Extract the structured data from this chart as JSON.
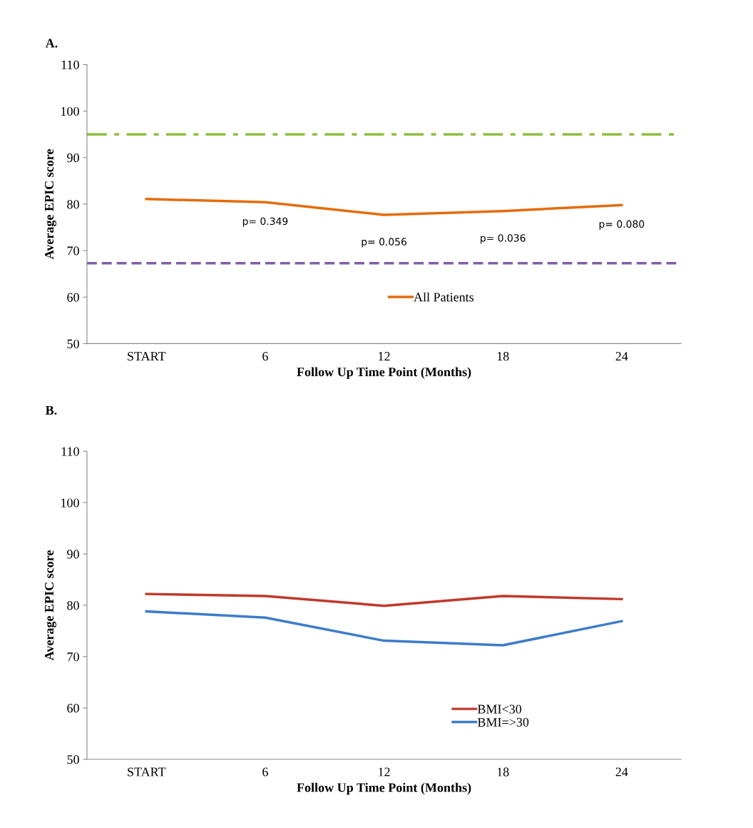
{
  "chart_data": [
    {
      "type": "line",
      "title": "A.",
      "xlabel": "Follow Up Time Point (Months)",
      "ylabel": "Average EPIC score",
      "categories": [
        "START",
        "6",
        "12",
        "18",
        "24"
      ],
      "series": [
        {
          "name": "All Patients",
          "color": "#e46c0a",
          "values": [
            81.1,
            80.4,
            77.7,
            78.5,
            79.8
          ]
        }
      ],
      "ylim": [
        50,
        110
      ],
      "yticks": [
        50,
        60,
        70,
        80,
        90,
        100,
        110
      ],
      "grid": false,
      "legend": "bottom",
      "ref_lines": [
        {
          "axis": "y",
          "value": 95,
          "color": "#8fbc3f",
          "line_style": "dashdot"
        },
        {
          "axis": "y",
          "value": 67.3,
          "color": "#7f5fa8",
          "line_style": "dashed"
        }
      ],
      "annotations": [
        "p= 0.349",
        "p= 0.056",
        "p= 0.036",
        "p= 0.080"
      ]
    },
    {
      "type": "line",
      "title": "B.",
      "xlabel": "Follow Up Time Point (Months)",
      "ylabel": "Average EPIC score",
      "categories": [
        "START",
        "6",
        "12",
        "18",
        "24"
      ],
      "series": [
        {
          "name": "BMI<30",
          "color": "#c0392b",
          "values": [
            82.2,
            81.8,
            79.9,
            81.8,
            81.2
          ]
        },
        {
          "name": "BMI=>30",
          "color": "#3d7cc9",
          "values": [
            78.8,
            77.6,
            73.1,
            72.2,
            76.9
          ]
        }
      ],
      "ylim": [
        50,
        110
      ],
      "yticks": [
        50,
        60,
        70,
        80,
        90,
        100,
        110
      ],
      "grid": false,
      "legend": "bottom right"
    }
  ]
}
